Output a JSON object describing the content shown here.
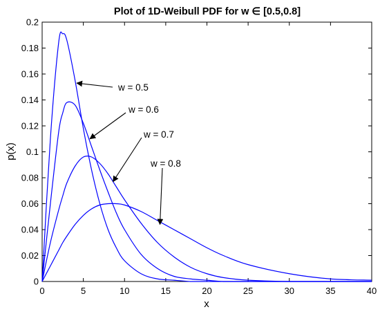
{
  "chart_data": {
    "type": "line",
    "title": "Plot of 1D-Weibull PDF for w  ∈ [0.5,0.8]",
    "xlabel": "x",
    "ylabel": "p(x)",
    "xlim": [
      0,
      40
    ],
    "ylim": [
      0,
      0.2
    ],
    "x_ticks": [
      "0",
      "5",
      "10",
      "15",
      "20",
      "25",
      "30",
      "35",
      "40"
    ],
    "y_ticks": [
      "0",
      "0.02",
      "0.04",
      "0.06",
      "0.08",
      "0.1",
      "0.12",
      "0.14",
      "0.16",
      "0.18",
      "0.2"
    ],
    "grid": false,
    "line_color": "#0000ff",
    "x": [
      0,
      1,
      2,
      2.5,
      3,
      4,
      5,
      6,
      7,
      8,
      9,
      10,
      12,
      14,
      16,
      18,
      20,
      22,
      25,
      30,
      35,
      40
    ],
    "series": [
      {
        "name": "w = 0.5",
        "values": [
          0,
          0.11,
          0.184,
          0.191,
          0.186,
          0.155,
          0.118,
          0.086,
          0.06,
          0.04,
          0.026,
          0.016,
          0.006,
          0.002,
          0.001,
          0,
          0,
          0,
          0,
          0,
          0,
          0
        ]
      },
      {
        "name": "w = 0.6",
        "values": [
          0,
          0.06,
          0.115,
          0.13,
          0.138,
          0.136,
          0.122,
          0.104,
          0.086,
          0.069,
          0.053,
          0.04,
          0.021,
          0.01,
          0.004,
          0.002,
          0.001,
          0,
          0,
          0,
          0,
          0
        ]
      },
      {
        "name": "w = 0.7",
        "values": [
          0,
          0.03,
          0.055,
          0.066,
          0.076,
          0.089,
          0.096,
          0.096,
          0.091,
          0.083,
          0.073,
          0.063,
          0.045,
          0.03,
          0.019,
          0.011,
          0.006,
          0.003,
          0.001,
          0,
          0,
          0
        ]
      },
      {
        "name": "w = 0.8",
        "values": [
          0,
          0.012,
          0.024,
          0.03,
          0.035,
          0.044,
          0.051,
          0.056,
          0.059,
          0.06,
          0.06,
          0.059,
          0.054,
          0.047,
          0.04,
          0.033,
          0.026,
          0.02,
          0.013,
          0.006,
          0.002,
          0.001
        ]
      }
    ],
    "annotations": [
      {
        "text": "w = 0.5",
        "arrow_to": [
          4.2,
          0.153
        ]
      },
      {
        "text": "w = 0.6",
        "arrow_to": [
          5.8,
          0.11
        ]
      },
      {
        "text": "w = 0.7",
        "arrow_to": [
          8.6,
          0.077
        ]
      },
      {
        "text": "w = 0.8",
        "arrow_to": [
          14.3,
          0.044
        ]
      }
    ]
  }
}
